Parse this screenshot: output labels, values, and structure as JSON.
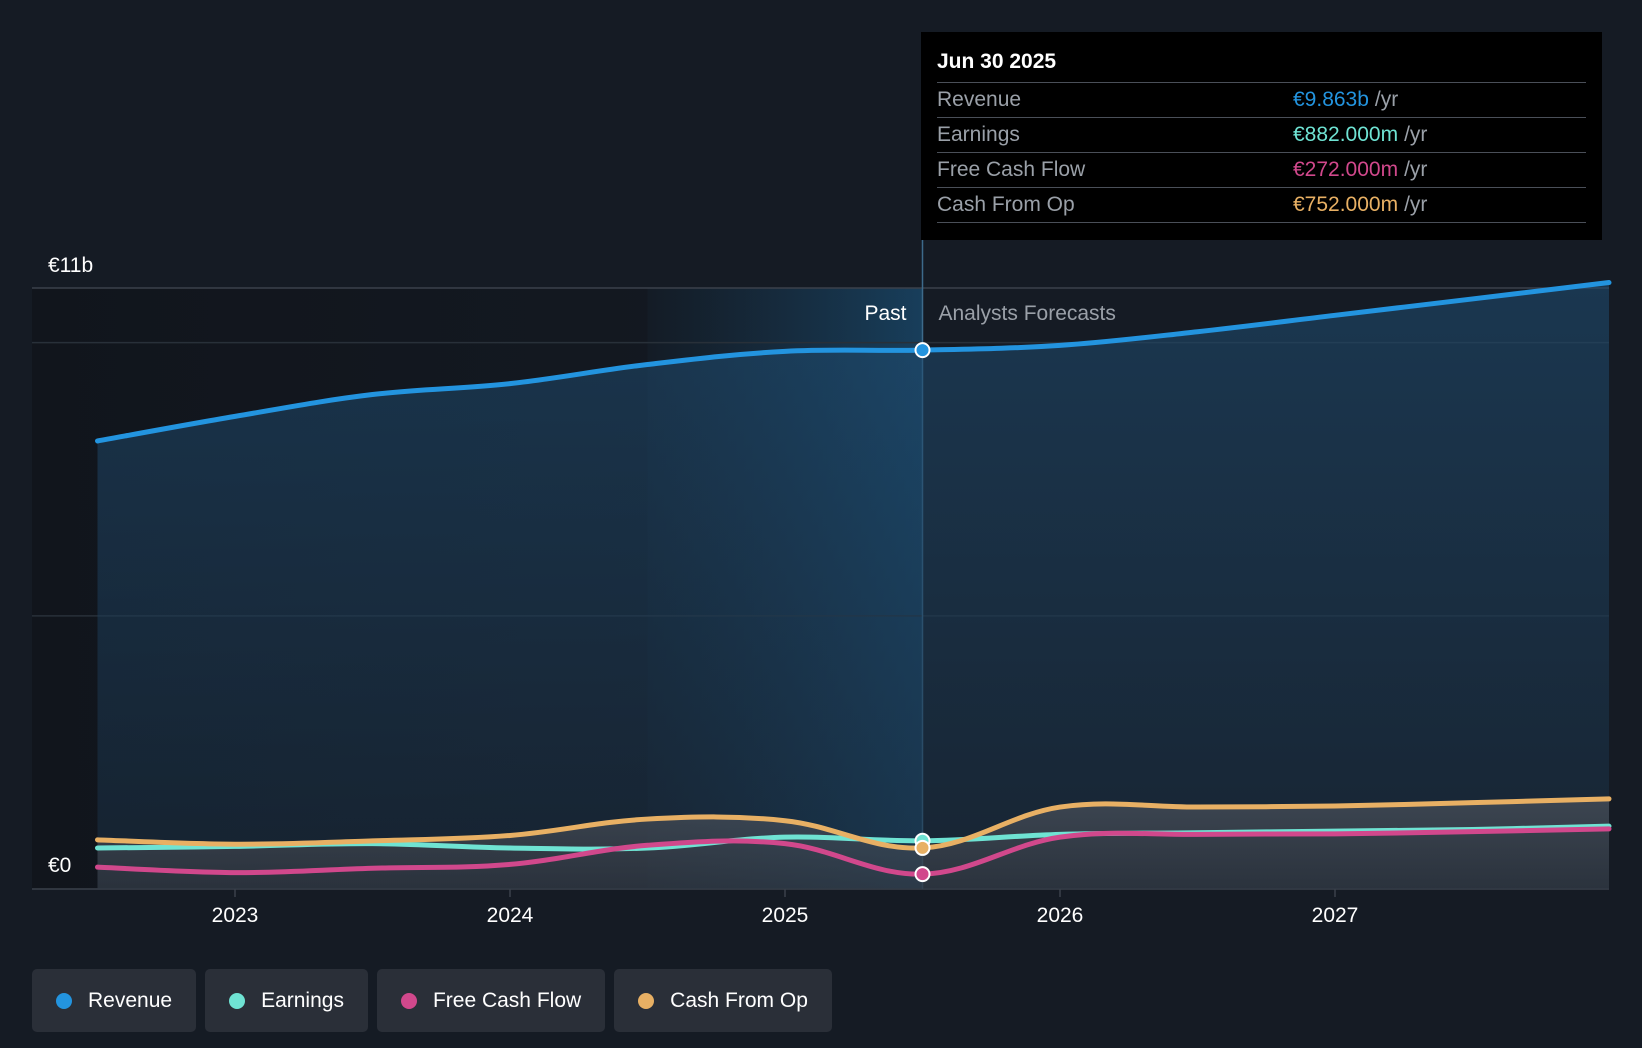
{
  "chart_data": {
    "type": "area",
    "y_axis": {
      "top_label": "€11b",
      "bottom_label": "€0",
      "ylim": [
        0,
        11
      ]
    },
    "x_ticks": [
      "2023",
      "2024",
      "2025",
      "2026",
      "2027"
    ],
    "past_label": "Past",
    "forecast_label": "Analysts Forecasts",
    "colors": {
      "revenue": "#2394df",
      "earnings": "#6fe3d3",
      "fcf": "#d1488c",
      "cfo": "#e8b064"
    },
    "series": [
      {
        "key": "revenue",
        "name": "Revenue",
        "points": [
          [
            2022.5,
            8.2
          ],
          [
            2023.0,
            8.65
          ],
          [
            2023.5,
            9.05
          ],
          [
            2024.0,
            9.25
          ],
          [
            2024.5,
            9.6
          ],
          [
            2025.0,
            9.84
          ],
          [
            2025.5,
            9.863
          ],
          [
            2026.0,
            9.95
          ],
          [
            2026.5,
            10.2
          ],
          [
            2027.0,
            10.5
          ],
          [
            2027.5,
            10.8
          ],
          [
            2028.0,
            11.1
          ]
        ]
      },
      {
        "key": "earnings",
        "name": "Earnings",
        "points": [
          [
            2022.5,
            0.75
          ],
          [
            2023.0,
            0.78
          ],
          [
            2023.5,
            0.83
          ],
          [
            2024.0,
            0.75
          ],
          [
            2024.5,
            0.75
          ],
          [
            2025.0,
            0.95
          ],
          [
            2025.5,
            0.882
          ],
          [
            2026.0,
            1.0
          ],
          [
            2026.5,
            1.03
          ],
          [
            2027.0,
            1.06
          ],
          [
            2027.5,
            1.09
          ],
          [
            2028.0,
            1.15
          ]
        ]
      },
      {
        "key": "fcf",
        "name": "Free Cash Flow",
        "points": [
          [
            2022.5,
            0.4
          ],
          [
            2023.0,
            0.3
          ],
          [
            2023.5,
            0.38
          ],
          [
            2024.0,
            0.45
          ],
          [
            2024.5,
            0.8
          ],
          [
            2025.0,
            0.83
          ],
          [
            2025.5,
            0.272
          ],
          [
            2026.0,
            0.95
          ],
          [
            2026.5,
            1.0
          ],
          [
            2027.0,
            1.01
          ],
          [
            2027.5,
            1.05
          ],
          [
            2028.0,
            1.1
          ]
        ]
      },
      {
        "key": "cfo",
        "name": "Cash From Op",
        "points": [
          [
            2022.5,
            0.9
          ],
          [
            2023.0,
            0.82
          ],
          [
            2023.5,
            0.88
          ],
          [
            2024.0,
            0.98
          ],
          [
            2024.5,
            1.28
          ],
          [
            2025.0,
            1.25
          ],
          [
            2025.5,
            0.752
          ],
          [
            2026.0,
            1.5
          ],
          [
            2026.5,
            1.5
          ],
          [
            2027.0,
            1.52
          ],
          [
            2027.5,
            1.58
          ],
          [
            2028.0,
            1.65
          ]
        ]
      }
    ],
    "highlight_x": 2025.5,
    "tooltip": {
      "date": "Jun 30 2025",
      "rows": [
        {
          "key": "revenue",
          "label": "Revenue",
          "value": "€9.863b",
          "unit": "/yr"
        },
        {
          "key": "earnings",
          "label": "Earnings",
          "value": "€882.000m",
          "unit": "/yr"
        },
        {
          "key": "fcf",
          "label": "Free Cash Flow",
          "value": "€272.000m",
          "unit": "/yr"
        },
        {
          "key": "cfo",
          "label": "Cash From Op",
          "value": "€752.000m",
          "unit": "/yr"
        }
      ]
    }
  },
  "legend": [
    {
      "key": "revenue",
      "label": "Revenue"
    },
    {
      "key": "earnings",
      "label": "Earnings"
    },
    {
      "key": "fcf",
      "label": "Free Cash Flow"
    },
    {
      "key": "cfo",
      "label": "Cash From Op"
    }
  ]
}
